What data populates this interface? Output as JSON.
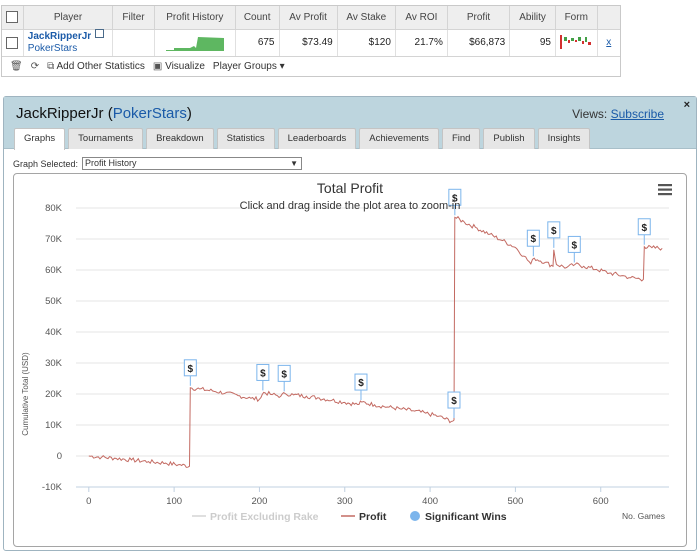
{
  "summary": {
    "headers": [
      "Player",
      "Filter",
      "Profit History",
      "Count",
      "Av Profit",
      "Av Stake",
      "Av ROI",
      "Profit",
      "Ability",
      "Form"
    ],
    "player_name": "JackRipperJr",
    "site": "PokerStars",
    "count": "675",
    "av_profit": "$73.49",
    "av_stake": "$120",
    "av_roi": "21.7%",
    "profit": "$66,873",
    "ability": "95",
    "remove": "x"
  },
  "toolbar": {
    "add_stats": "Add Other Statistics",
    "visualize": "Visualize",
    "player_groups": "Player Groups"
  },
  "panel": {
    "title_name": "JackRipperJr",
    "title_site": "PokerStars",
    "views_label": "Views:",
    "subscribe": "Subscribe",
    "close": "×",
    "tabs": [
      "Graphs",
      "Tournaments",
      "Breakdown",
      "Statistics",
      "Leaderboards",
      "Achievements",
      "Find",
      "Publish",
      "Insights"
    ],
    "graph_selected_label": "Graph Selected:",
    "graph_selected_value": "Profit History"
  },
  "chart_data": {
    "type": "line",
    "title": "Total Profit",
    "subtitle": "Click and drag inside the plot area to zoom-in",
    "ylabel": "Cumulative Total (USD)",
    "xlabel": "No. Games",
    "xlim": [
      -15,
      680
    ],
    "ylim": [
      -10000,
      80000
    ],
    "yticks": [
      -10000,
      0,
      10000,
      20000,
      30000,
      40000,
      50000,
      60000,
      70000,
      80000
    ],
    "ytick_labels": [
      "-10K",
      "0",
      "10K",
      "20K",
      "30K",
      "40K",
      "50K",
      "60K",
      "70K",
      "80K"
    ],
    "xticks": [
      0,
      100,
      200,
      300,
      400,
      500,
      600
    ],
    "legend": [
      "Profit Excluding Rake",
      "Profit",
      "Significant Wins"
    ],
    "colors": {
      "profit": "#c36a62",
      "excluding_rake": "#d4d4d4",
      "wins": "#7cb5ec"
    },
    "profit_series": [
      [
        0,
        0
      ],
      [
        15,
        -400
      ],
      [
        30,
        -700
      ],
      [
        50,
        -1300
      ],
      [
        70,
        -1800
      ],
      [
        90,
        -2300
      ],
      [
        105,
        -2800
      ],
      [
        118,
        -3300
      ],
      [
        119,
        22000
      ],
      [
        130,
        21600
      ],
      [
        145,
        21000
      ],
      [
        160,
        20300
      ],
      [
        175,
        19500
      ],
      [
        190,
        18600
      ],
      [
        200,
        18300
      ],
      [
        205,
        20500
      ],
      [
        215,
        19800
      ],
      [
        225,
        19300
      ],
      [
        230,
        20200
      ],
      [
        240,
        19700
      ],
      [
        255,
        19300
      ],
      [
        270,
        18700
      ],
      [
        285,
        18000
      ],
      [
        300,
        17300
      ],
      [
        315,
        16600
      ],
      [
        320,
        17400
      ],
      [
        335,
        16500
      ],
      [
        350,
        15800
      ],
      [
        365,
        15200
      ],
      [
        380,
        14600
      ],
      [
        395,
        13800
      ],
      [
        410,
        12800
      ],
      [
        425,
        11200
      ],
      [
        428,
        11600
      ],
      [
        429,
        77000
      ],
      [
        440,
        75500
      ],
      [
        455,
        73500
      ],
      [
        470,
        71500
      ],
      [
        485,
        69500
      ],
      [
        500,
        67300
      ],
      [
        510,
        64500
      ],
      [
        518,
        62000
      ],
      [
        522,
        63800
      ],
      [
        535,
        62500
      ],
      [
        544,
        61200
      ],
      [
        545,
        66500
      ],
      [
        548,
        61800
      ],
      [
        560,
        60800
      ],
      [
        570,
        61800
      ],
      [
        580,
        61200
      ],
      [
        595,
        60200
      ],
      [
        610,
        59000
      ],
      [
        625,
        58200
      ],
      [
        635,
        57500
      ],
      [
        650,
        57000
      ],
      [
        651,
        67500
      ],
      [
        660,
        67200
      ],
      [
        672,
        67000
      ]
    ],
    "significant_wins": [
      {
        "x": 119,
        "y": 22000,
        "label": "$"
      },
      {
        "x": 204,
        "y": 20500,
        "label": "$"
      },
      {
        "x": 229,
        "y": 20200,
        "label": "$"
      },
      {
        "x": 319,
        "y": 17400,
        "label": "$"
      },
      {
        "x": 428,
        "y": 11600,
        "label": "$"
      },
      {
        "x": 429,
        "y": 77000,
        "label": "$"
      },
      {
        "x": 521,
        "y": 63800,
        "label": "$"
      },
      {
        "x": 545,
        "y": 66500,
        "label": "$"
      },
      {
        "x": 569,
        "y": 61800,
        "label": "$"
      },
      {
        "x": 651,
        "y": 67500,
        "label": "$"
      }
    ]
  }
}
